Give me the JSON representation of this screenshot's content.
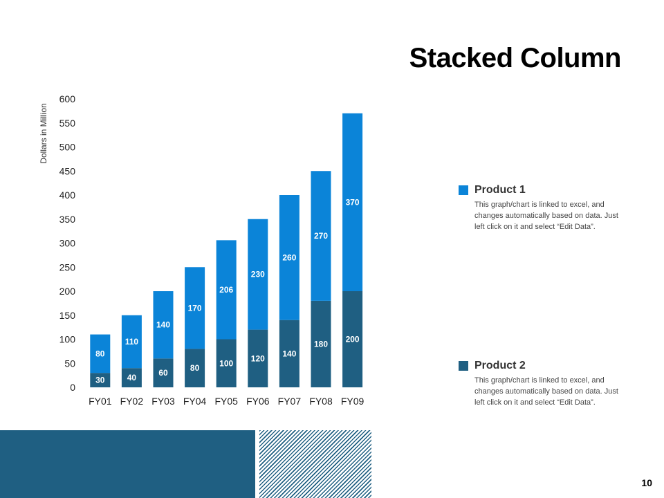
{
  "slide": {
    "title": "Stacked Column",
    "page_number": "10"
  },
  "colors": {
    "product1": "#0b84d8",
    "product2": "#1f5f82",
    "band": "#1f5f82"
  },
  "legend": [
    {
      "name": "Product 1",
      "description": "This graph/chart is linked to excel, and changes automatically based on data. Just left click on it and select “Edit Data”."
    },
    {
      "name": "Product 2",
      "description": "This graph/chart is linked to excel, and changes automatically based on data. Just left click on it and select “Edit Data”."
    }
  ],
  "chart_data": {
    "type": "bar",
    "stacked": true,
    "title": "Stacked Column",
    "xlabel": "",
    "ylabel": "Dollars in Million",
    "ylim": [
      0,
      600
    ],
    "yticks": [
      0,
      50,
      100,
      150,
      200,
      250,
      300,
      350,
      400,
      450,
      500,
      550,
      600
    ],
    "grid": false,
    "categories": [
      "FY01",
      "FY02",
      "FY03",
      "FY04",
      "FY05",
      "FY06",
      "FY07",
      "FY08",
      "FY09"
    ],
    "series": [
      {
        "name": "Product 2",
        "values": [
          30,
          40,
          60,
          80,
          100,
          120,
          140,
          180,
          200
        ],
        "labels": [
          "30",
          "40",
          "60",
          "80",
          "100",
          "120",
          "140",
          "180",
          "200"
        ]
      },
      {
        "name": "Product 1",
        "values": [
          80,
          110,
          140,
          170,
          206,
          230,
          260,
          270,
          370
        ],
        "labels": [
          "80",
          "110",
          "140",
          "170",
          "206",
          "230",
          "260",
          "270",
          "370"
        ]
      }
    ]
  }
}
